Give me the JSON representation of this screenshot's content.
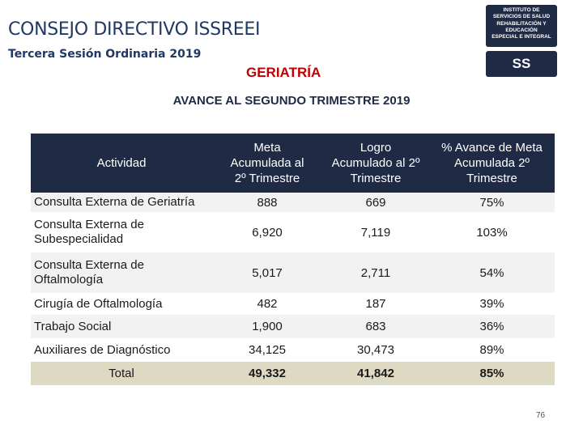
{
  "header": {
    "title": "CONSEJO DIRECTIVO ISSREEI",
    "subtitle": "Tercera Sesión Ordinaria 2019",
    "section": "GERIATRÍA",
    "logo_lines": [
      "INSTITUTO DE",
      "SERVICIOS DE SALUD",
      "REHABILITACIÓN Y",
      "EDUCACIÓN",
      "ESPECIAL E INTEGRAL"
    ],
    "logo_mark": "SS"
  },
  "heading": "AVANCE AL SEGUNDO TRIMESTRE 2019",
  "table": {
    "columns": [
      [
        "Actividad"
      ],
      [
        "Meta",
        "Acumulada al",
        "2º Trimestre"
      ],
      [
        "Logro",
        "Acumulado al 2º",
        "Trimestre"
      ],
      [
        "% Avance de Meta",
        "Acumulada 2º",
        "Trimestre"
      ]
    ],
    "rows": [
      [
        "Consulta Externa de Geriatría",
        "888",
        "669",
        "75%"
      ],
      [
        "Consulta Externa de Subespecialidad",
        "6,920",
        "7,119",
        "103%"
      ],
      [
        "Consulta Externa de Oftalmología",
        "5,017",
        "2,711",
        "54%"
      ],
      [
        "Cirugía de Oftalmología",
        "482",
        "187",
        "39%"
      ],
      [
        "Trabajo Social",
        "1,900",
        "683",
        "36%"
      ],
      [
        "Auxiliares de Diagnóstico",
        "34,125",
        "30,473",
        "89%"
      ]
    ],
    "total": [
      "Total",
      "49,332",
      "41,842",
      "85%"
    ]
  },
  "page_number": "76"
}
